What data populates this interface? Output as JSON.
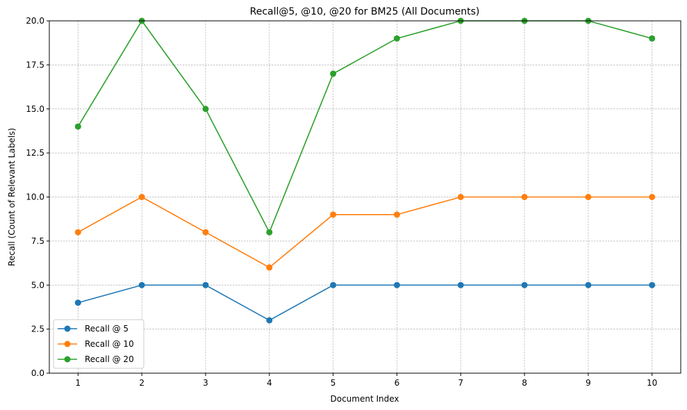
{
  "chart_data": {
    "type": "line",
    "title": "Recall@5, @10, @20 for BM25 (All Documents)",
    "xlabel": "Document Index",
    "ylabel": "Recall (Count of Relevant Labels)",
    "x": [
      1,
      2,
      3,
      4,
      5,
      6,
      7,
      8,
      9,
      10
    ],
    "x_tick_labels": [
      "1",
      "2",
      "3",
      "4",
      "5",
      "6",
      "7",
      "8",
      "9",
      "10"
    ],
    "ylim": [
      0,
      20
    ],
    "y_ticks": [
      0,
      2.5,
      5,
      7.5,
      10,
      12.5,
      15,
      17.5,
      20
    ],
    "y_tick_labels": [
      "0.0",
      "2.5",
      "5.0",
      "7.5",
      "10.0",
      "12.5",
      "15.0",
      "17.5",
      "20.0"
    ],
    "grid": true,
    "legend_position": "lower-left",
    "series": [
      {
        "name": "Recall @ 5",
        "color": "#1f77b4",
        "values": [
          4,
          5,
          5,
          3,
          5,
          5,
          5,
          5,
          5,
          5
        ]
      },
      {
        "name": "Recall @ 10",
        "color": "#ff7f0e",
        "values": [
          8,
          10,
          8,
          6,
          9,
          9,
          10,
          10,
          10,
          10
        ]
      },
      {
        "name": "Recall @ 20",
        "color": "#2ca02c",
        "values": [
          14,
          20,
          15,
          8,
          17,
          19,
          20,
          20,
          20,
          19
        ]
      }
    ]
  }
}
